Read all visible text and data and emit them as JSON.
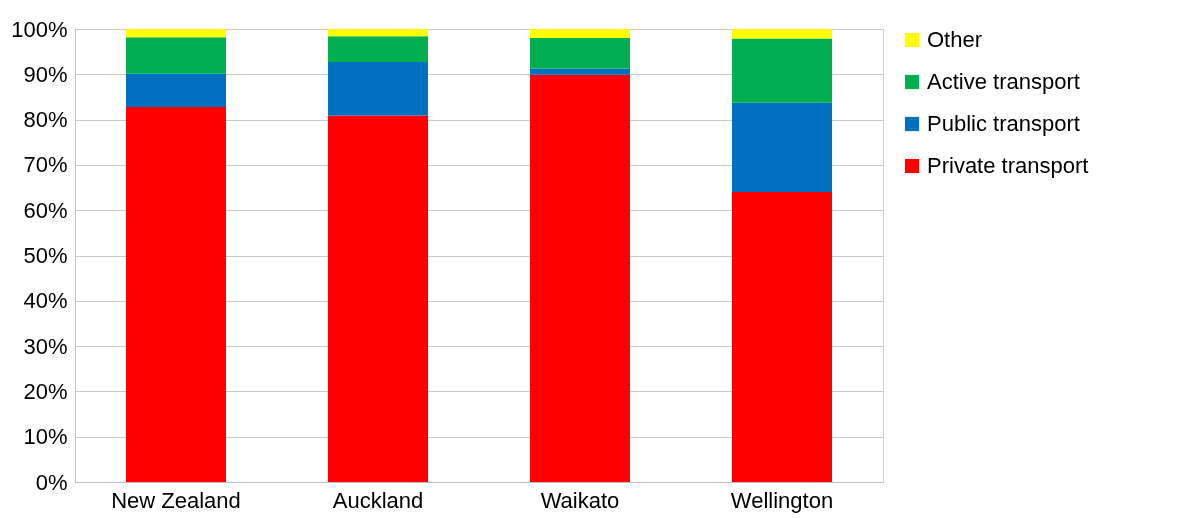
{
  "chart_data": {
    "type": "bar",
    "stacked": true,
    "categories": [
      "New Zealand",
      "Auckland",
      "Waikato",
      "Wellington"
    ],
    "series": [
      {
        "name": "Private transport",
        "color": "#ff0000",
        "values": [
          82.8,
          80.9,
          89.9,
          64.0
        ]
      },
      {
        "name": "Public transport",
        "color": "#0070c0",
        "values": [
          7.3,
          11.8,
          1.4,
          19.7
        ]
      },
      {
        "name": "Active transport",
        "color": "#00b050",
        "values": [
          8.1,
          5.7,
          6.7,
          14.2
        ]
      },
      {
        "name": "Other",
        "color": "#ffff00",
        "values": [
          1.8,
          1.6,
          2.0,
          2.1
        ]
      }
    ],
    "ylim": [
      0,
      100
    ],
    "yticks": [
      {
        "value": 0,
        "label": "0%"
      },
      {
        "value": 10,
        "label": "10%"
      },
      {
        "value": 20,
        "label": "20%"
      },
      {
        "value": 30,
        "label": "30%"
      },
      {
        "value": 40,
        "label": "40%"
      },
      {
        "value": 50,
        "label": "50%"
      },
      {
        "value": 60,
        "label": "60%"
      },
      {
        "value": 70,
        "label": "70%"
      },
      {
        "value": 80,
        "label": "80%"
      },
      {
        "value": 90,
        "label": "90%"
      },
      {
        "value": 100,
        "label": "100%"
      }
    ],
    "grid": "y",
    "legend": "right"
  }
}
